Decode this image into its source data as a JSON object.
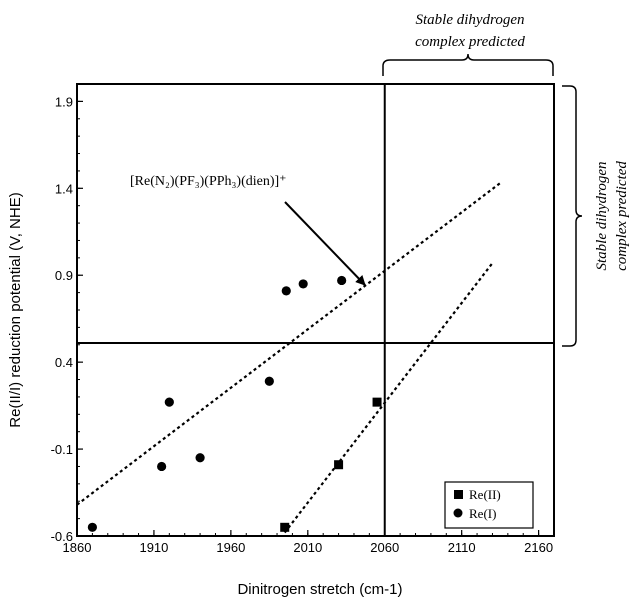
{
  "chart_data": {
    "type": "scatter",
    "xlabel": "Dinitrogen stretch (cm-1)",
    "ylabel": "Re(II/I) reduction potential (V, NHE)",
    "xlim": [
      1860,
      2170
    ],
    "ylim": [
      -0.6,
      2.0
    ],
    "x_ticks": [
      "1860",
      "1910",
      "1960",
      "2010",
      "2060",
      "2110",
      "2160"
    ],
    "y_ticks": [
      "-0.6",
      "-0.1",
      "0.4",
      "0.9",
      "1.4",
      "1.9"
    ],
    "grid": false,
    "legend_position": "bottom-right",
    "series": [
      {
        "name": "Re(II)",
        "marker": "square",
        "points": [
          [
            1995,
            -0.55
          ],
          [
            2030,
            -0.19
          ],
          [
            2055,
            0.17
          ]
        ],
        "fit_line": [
          [
            1995,
            -0.58
          ],
          [
            2130,
            0.97
          ]
        ]
      },
      {
        "name": "Re(I)",
        "marker": "circle",
        "points": [
          [
            1870,
            -0.55
          ],
          [
            1915,
            -0.2
          ],
          [
            1920,
            0.17
          ],
          [
            1940,
            -0.15
          ],
          [
            1985,
            0.29
          ],
          [
            1996,
            0.81
          ],
          [
            2007,
            0.85
          ],
          [
            2032,
            0.87
          ]
        ],
        "fit_line": [
          [
            1860,
            -0.42
          ],
          [
            2135,
            1.43
          ]
        ]
      }
    ],
    "reference_lines": {
      "x": 2060,
      "y": 0.51
    },
    "annotations": {
      "compound": "[Re(N₂)(PF₃)(PPh₃)(dien)]⁺",
      "arrow_target": [
        2032,
        0.87
      ],
      "top_region_line1": "Stable dihydrogen",
      "top_region_line2": "complex predicted",
      "right_region_line1": "Stable dihydrogen",
      "right_region_line2": "complex predicted"
    }
  }
}
